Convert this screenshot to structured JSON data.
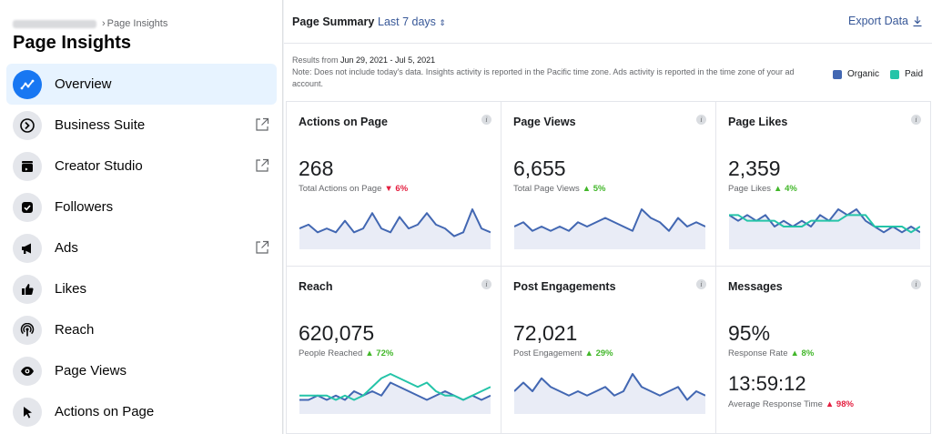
{
  "sidebar": {
    "breadcrumb_current": "Page Insights",
    "breadcrumb_separator": "›",
    "title": "Page Insights",
    "items": [
      {
        "label": "Overview",
        "icon": "trend-line-icon",
        "external": false,
        "active": true
      },
      {
        "label": "Business Suite",
        "icon": "business-suite-icon",
        "external": true,
        "active": false
      },
      {
        "label": "Creator Studio",
        "icon": "clapperboard-icon",
        "external": true,
        "active": false
      },
      {
        "label": "Followers",
        "icon": "followers-check-icon",
        "external": false,
        "active": false
      },
      {
        "label": "Ads",
        "icon": "megaphone-icon",
        "external": true,
        "active": false
      },
      {
        "label": "Likes",
        "icon": "thumbs-up-icon",
        "external": false,
        "active": false
      },
      {
        "label": "Reach",
        "icon": "broadcast-icon",
        "external": false,
        "active": false
      },
      {
        "label": "Page Views",
        "icon": "eye-icon",
        "external": false,
        "active": false
      },
      {
        "label": "Actions on Page",
        "icon": "cursor-icon",
        "external": false,
        "active": false
      }
    ]
  },
  "header": {
    "title": "Page Summary",
    "range": "Last 7 days",
    "range_arrow": "⇕",
    "export_label": "Export Data"
  },
  "notes": {
    "results_prefix": "Results from ",
    "results_dates": "Jun 29, 2021 - Jul 5, 2021",
    "note": "Note: Does not include today's data. Insights activity is reported in the Pacific time zone. Ads activity is reported in the time zone of your ad account."
  },
  "legend": {
    "organic_label": "Organic",
    "paid_label": "Paid",
    "organic_color": "#4267b2",
    "paid_color": "#24c4a8"
  },
  "cards": [
    {
      "title": "Actions on Page",
      "value": "268",
      "sublabel": "Total Actions on Page",
      "delta": "6%",
      "direction": "down",
      "organic": [
        4,
        5,
        3,
        4,
        3,
        6,
        3,
        4,
        8,
        4,
        3,
        7,
        4,
        5,
        8,
        5,
        4,
        2,
        3,
        9,
        4,
        3
      ],
      "paid": []
    },
    {
      "title": "Page Views",
      "value": "6,655",
      "sublabel": "Total Page Views",
      "delta": "5%",
      "direction": "up",
      "organic": [
        4,
        5,
        3,
        4,
        3,
        4,
        3,
        5,
        4,
        5,
        6,
        5,
        4,
        3,
        8,
        6,
        5,
        3,
        6,
        4,
        5,
        4
      ],
      "paid": []
    },
    {
      "title": "Page Likes",
      "value": "2,359",
      "sublabel": "Page Likes",
      "delta": "4%",
      "direction": "up",
      "organic": [
        5,
        4,
        5,
        4,
        5,
        3,
        4,
        3,
        4,
        3,
        5,
        4,
        6,
        5,
        6,
        4,
        3,
        2,
        3,
        2,
        3,
        2
      ],
      "paid": [
        5,
        5,
        4,
        4,
        4,
        4,
        3,
        3,
        3,
        4,
        4,
        4,
        4,
        5,
        5,
        5,
        3,
        3,
        3,
        3,
        2,
        3
      ]
    },
    {
      "title": "Reach",
      "value": "620,075",
      "sublabel": "People Reached",
      "delta": "72%",
      "direction": "up",
      "organic": [
        2,
        2,
        3,
        2,
        3,
        2,
        4,
        3,
        4,
        3,
        6,
        5,
        4,
        3,
        2,
        3,
        4,
        3,
        2,
        3,
        2,
        3
      ],
      "paid": [
        3,
        3,
        3,
        3,
        2,
        3,
        2,
        3,
        5,
        7,
        8,
        7,
        6,
        5,
        6,
        4,
        3,
        3,
        2,
        3,
        4,
        5
      ]
    },
    {
      "title": "Post Engagements",
      "value": "72,021",
      "sublabel": "Post Engagement",
      "delta": "29%",
      "direction": "up",
      "organic": [
        4,
        6,
        4,
        7,
        5,
        4,
        3,
        4,
        3,
        4,
        5,
        3,
        4,
        8,
        5,
        4,
        3,
        4,
        5,
        2,
        4,
        3
      ],
      "paid": []
    },
    {
      "title": "Messages",
      "value": "95%",
      "sublabel": "Response Rate",
      "delta": "8%",
      "direction": "up",
      "value2": "13:59:12",
      "sublabel2": "Average Response Time",
      "delta2": "98%",
      "direction2": "up_red",
      "organic": [],
      "paid": []
    }
  ]
}
